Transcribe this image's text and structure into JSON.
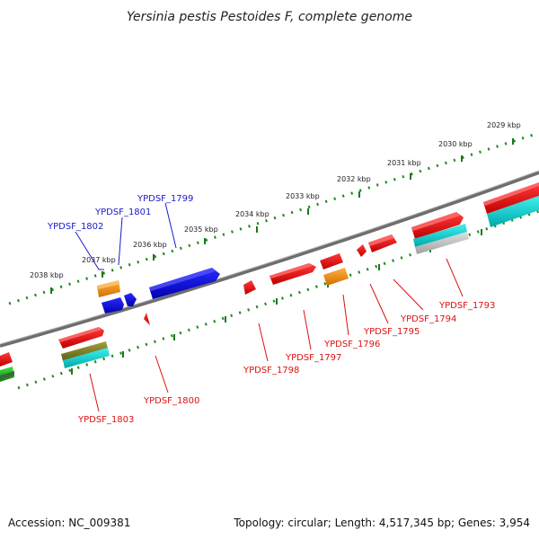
{
  "title": "Yersinia pestis Pestoides F, complete genome",
  "footer": {
    "accession": "Accession: NC_009381",
    "summary": "Topology: circular; Length: 4,517,345 bp; Genes: 3,954"
  },
  "colors": {
    "forward_label": "#1a1acc",
    "reverse_label": "#dd1111",
    "ticks": "#1a7a1a",
    "backbone": "#808080"
  },
  "kbp_ticks": [
    "2038 kbp",
    "2037 kbp",
    "2036 kbp",
    "2035 kbp",
    "2034 kbp",
    "2033 kbp",
    "2032 kbp",
    "2031 kbp",
    "2030 kbp",
    "2029 kbp"
  ],
  "gene_labels": {
    "forward": [
      "YPDSF_1802",
      "YPDSF_1801",
      "YPDSF_1799"
    ],
    "reverse": [
      "YPDSF_1803",
      "YPDSF_1800",
      "YPDSF_1798",
      "YPDSF_1797",
      "YPDSF_1796",
      "YPDSF_1795",
      "YPDSF_1794",
      "YPDSF_1793"
    ]
  }
}
